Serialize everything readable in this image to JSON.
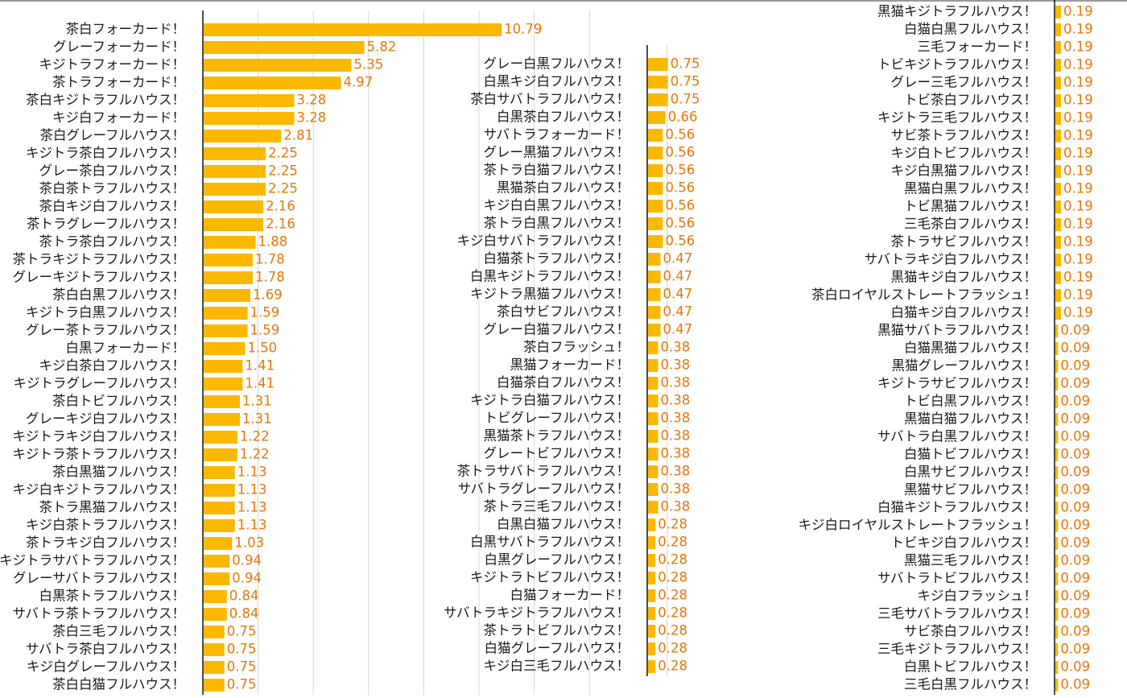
{
  "chart_data": [
    {
      "type": "bar",
      "orientation": "horizontal",
      "categories": [
        "茶白フォーカード！",
        "グレーフォーカード！",
        "キジトラフォーカード！",
        "茶トラフォーカード！",
        "茶白キジトラフルハウス！",
        "キジ白フォーカード！",
        "茶白グレーフルハウス！",
        "キジトラ茶白フルハウス！",
        "グレー茶白フルハウス！",
        "茶白茶トラフルハウス！",
        "茶白キジ白フルハウス！",
        "茶トラグレーフルハウス！",
        "茶トラ茶白フルハウス！",
        "茶トラキジトラフルハウス！",
        "グレーキジトラフルハウス！",
        "茶白白黒フルハウス！",
        "キジトラ白黒フルハウス！",
        "グレー茶トラフルハウス！",
        "白黒フォーカード！",
        "キジ白茶白フルハウス！",
        "キジトラグレーフルハウス！",
        "茶白トビフルハウス！",
        "グレーキジ白フルハウス！",
        "キジトラキジ白フルハウス！",
        "キジトラ茶トラフルハウス！",
        "茶白黒猫フルハウス！",
        "キジ白キジトラフルハウス！",
        "茶トラ黒猫フルハウス！",
        "キジ白茶トラフルハウス！",
        "茶トラキジ白フルハウス！",
        "キジトラサバトラフルハウス！",
        "グレーサバトラフルハウス！",
        "白黒茶トラフルハウス！",
        "サバトラ茶トラフルハウス！",
        "茶白三毛フルハウス！",
        "サバトラ茶白フルハウス！",
        "キジ白グレーフルハウス！",
        "茶白白猫フルハウス！"
      ],
      "values": [
        10.79,
        5.82,
        5.35,
        4.97,
        3.28,
        3.28,
        2.81,
        2.25,
        2.25,
        2.25,
        2.16,
        2.16,
        1.88,
        1.78,
        1.78,
        1.69,
        1.59,
        1.59,
        1.5,
        1.41,
        1.41,
        1.31,
        1.31,
        1.22,
        1.22,
        1.13,
        1.13,
        1.13,
        1.13,
        1.03,
        0.94,
        0.94,
        0.84,
        0.84,
        0.75,
        0.75,
        0.75,
        0.75
      ],
      "value_labels": [
        "10.79",
        "5.82",
        "5.35",
        "4.97",
        "3.28",
        "3.28",
        "2.81",
        "2.25",
        "2.25",
        "2.25",
        "2.16",
        "2.16",
        "1.88",
        "1.78",
        "1.78",
        "1.69",
        "1.59",
        "1.59",
        "1.50",
        "1.41",
        "1.41",
        "1.31",
        "1.31",
        "1.22",
        "1.22",
        "1.13",
        "1.13",
        "1.13",
        "1.13",
        "1.03",
        "0.94",
        "0.94",
        "0.84",
        "0.84",
        "0.75",
        "0.75",
        "0.75",
        "0.75"
      ],
      "xlim": [
        0,
        16
      ],
      "grid": true,
      "bar_color": "#fbb800",
      "label_color": "#e8760a"
    },
    {
      "type": "bar",
      "orientation": "horizontal",
      "categories": [
        "グレー白黒フルハウス！",
        "白黒キジ白フルハウス！",
        "茶白サバトラフルハウス！",
        "白黒茶白フルハウス！",
        "サバトラフォーカード！",
        "グレー黒猫フルハウス！",
        "茶トラ白猫フルハウス！",
        "黒猫茶白フルハウス！",
        "キジ白白黒フルハウス！",
        "茶トラ白黒フルハウス！",
        "キジ白サバトラフルハウス！",
        "白猫茶トラフルハウス！",
        "白黒キジトラフルハウス！",
        "キジトラ黒猫フルハウス！",
        "茶白サビフルハウス！",
        "グレー白猫フルハウス！",
        "茶白フラッシュ！",
        "黒猫フォーカード！",
        "白猫茶白フルハウス！",
        "キジトラ白猫フルハウス！",
        "トビグレーフルハウス！",
        "黒猫茶トラフルハウス！",
        "グレートビフルハウス！",
        "茶トラサバトラフルハウス！",
        "サバトラグレーフルハウス！",
        "茶トラ三毛フルハウス！",
        "白黒白猫フルハウス！",
        "白黒サバトラフルハウス！",
        "白黒グレーフルハウス！",
        "キジトラトビフルハウス！",
        "白猫フォーカード！",
        "サバトラキジトラフルハウス！",
        "茶トラトビフルハウス！",
        "白猫グレーフルハウス！",
        "キジ白三毛フルハウス！"
      ],
      "values": [
        0.75,
        0.75,
        0.75,
        0.66,
        0.56,
        0.56,
        0.56,
        0.56,
        0.56,
        0.56,
        0.56,
        0.47,
        0.47,
        0.47,
        0.47,
        0.47,
        0.38,
        0.38,
        0.38,
        0.38,
        0.38,
        0.38,
        0.38,
        0.38,
        0.38,
        0.38,
        0.28,
        0.28,
        0.28,
        0.28,
        0.28,
        0.28,
        0.28,
        0.28,
        0.28
      ],
      "value_labels": [
        "0.75",
        "0.75",
        "0.75",
        "0.66",
        "0.56",
        "0.56",
        "0.56",
        "0.56",
        "0.56",
        "0.56",
        "0.56",
        "0.47",
        "0.47",
        "0.47",
        "0.47",
        "0.47",
        "0.38",
        "0.38",
        "0.38",
        "0.38",
        "0.38",
        "0.38",
        "0.38",
        "0.38",
        "0.38",
        "0.38",
        "0.28",
        "0.28",
        "0.28",
        "0.28",
        "0.28",
        "0.28",
        "0.28",
        "0.28",
        "0.28"
      ],
      "xlim": [
        0,
        3.9
      ],
      "grid": true,
      "bar_color": "#fbb800",
      "label_color": "#e8760a"
    },
    {
      "type": "bar",
      "orientation": "horizontal",
      "categories": [
        "黒猫キジトラフルハウス！",
        "白猫白黒フルハウス！",
        "三毛フォーカード！",
        "トビキジトラフルハウス！",
        "グレー三毛フルハウス！",
        "トビ茶白フルハウス！",
        "キジトラ三毛フルハウス！",
        "サビ茶トラフルハウス！",
        "キジ白トビフルハウス！",
        "キジ白黒猫フルハウス！",
        "黒猫白黒フルハウス！",
        "トビ黒猫フルハウス！",
        "三毛茶白フルハウス！",
        "茶トラサビフルハウス！",
        "サバトラキジ白フルハウス！",
        "黒猫キジ白フルハウス！",
        "茶白ロイヤルストレートフラッシュ！",
        "白猫キジ白フルハウス！",
        "黒猫サバトラフルハウス！",
        "白猫黒猫フルハウス！",
        "黒猫グレーフルハウス！",
        "キジトラサビフルハウス！",
        "トビ白黒フルハウス！",
        "黒猫白猫フルハウス！",
        "サバトラ白黒フルハウス！",
        "白猫トビフルハウス！",
        "白黒サビフルハウス！",
        "黒猫サビフルハウス！",
        "白猫キジトラフルハウス！",
        "キジ白ロイヤルストレートフラッシュ！",
        "トビキジ白フルハウス！",
        "黒猫三毛フルハウス！",
        "サバトラトビフルハウス！",
        "キジ白フラッシュ！",
        "三毛サバトラフルハウス！",
        "サビ茶白フルハウス！",
        "三毛キジトラフルハウス！",
        "白黒トビフルハウス！",
        "三毛白黒フルハウス！"
      ],
      "values": [
        0.19,
        0.19,
        0.19,
        0.19,
        0.19,
        0.19,
        0.19,
        0.19,
        0.19,
        0.19,
        0.19,
        0.19,
        0.19,
        0.19,
        0.19,
        0.19,
        0.19,
        0.19,
        0.09,
        0.09,
        0.09,
        0.09,
        0.09,
        0.09,
        0.09,
        0.09,
        0.09,
        0.09,
        0.09,
        0.09,
        0.09,
        0.09,
        0.09,
        0.09,
        0.09,
        0.09,
        0.09,
        0.09,
        0.09
      ],
      "value_labels": [
        "0.19",
        "0.19",
        "0.19",
        "0.19",
        "0.19",
        "0.19",
        "0.19",
        "0.19",
        "0.19",
        "0.19",
        "0.19",
        "0.19",
        "0.19",
        "0.19",
        "0.19",
        "0.19",
        "0.19",
        "0.19",
        "0.09",
        "0.09",
        "0.09",
        "0.09",
        "0.09",
        "0.09",
        "0.09",
        "0.09",
        "0.09",
        "0.09",
        "0.09",
        "0.09",
        "0.09",
        "0.09",
        "0.09",
        "0.09",
        "0.09",
        "0.09",
        "0.09",
        "0.09",
        "0.09"
      ],
      "xlim": [
        0,
        1.0
      ],
      "grid": false,
      "bar_color": "#fbb800",
      "label_color": "#e8760a"
    }
  ]
}
